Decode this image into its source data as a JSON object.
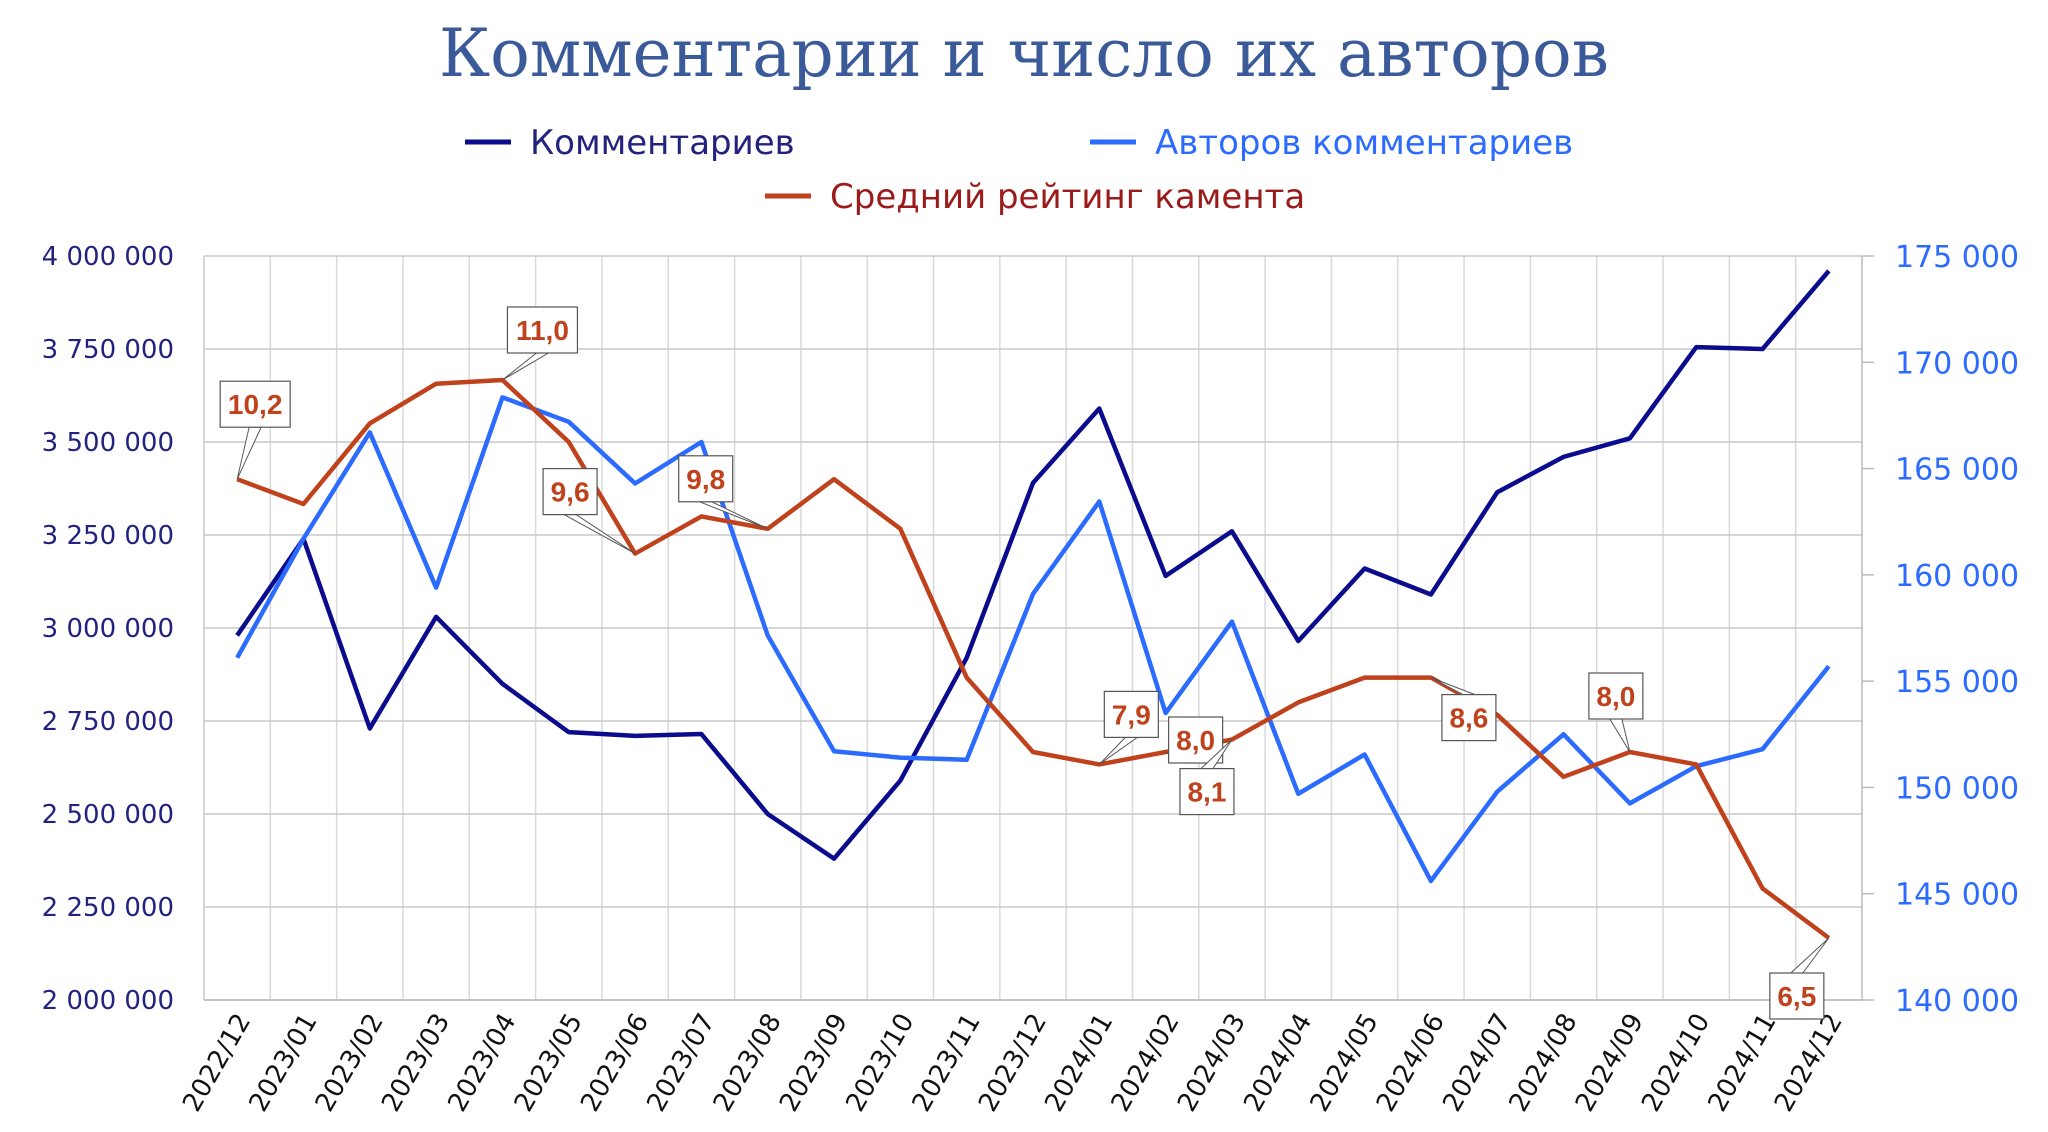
{
  "chart_data": {
    "type": "line",
    "title": "Комментарии и число их авторов",
    "legend_position": "top",
    "grid": true,
    "categories": [
      "2022/12",
      "2023/01",
      "2023/02",
      "2023/03",
      "2023/04",
      "2023/05",
      "2023/06",
      "2023/07",
      "2023/08",
      "2023/09",
      "2023/10",
      "2023/11",
      "2023/12",
      "2024/01",
      "2024/02",
      "2024/03",
      "2024/04",
      "2024/05",
      "2024/06",
      "2024/07",
      "2024/08",
      "2024/09",
      "2024/10",
      "2024/11",
      "2024/12"
    ],
    "y_left": {
      "range": [
        2000000,
        4000000
      ],
      "ticks": [
        2000000,
        2250000,
        2500000,
        2750000,
        3000000,
        3250000,
        3500000,
        3750000,
        4000000
      ],
      "tick_labels": [
        "2 000 000",
        "2 250 000",
        "2 500 000",
        "2 750 000",
        "3 000 000",
        "3 250 000",
        "3 500 000",
        "3 750 000",
        "4 000 000"
      ]
    },
    "y_right": {
      "range": [
        140000,
        175000
      ],
      "ticks": [
        140000,
        145000,
        150000,
        155000,
        160000,
        165000,
        170000,
        175000
      ],
      "tick_labels": [
        "140 000",
        "145 000",
        "150 000",
        "155 000",
        "160 000",
        "165 000",
        "170 000",
        "175 000"
      ]
    },
    "y_rating_hidden": {
      "range": [
        6,
        12
      ]
    },
    "series": [
      {
        "name": "Комментариев",
        "axis": "left",
        "color": "#0b0b8e",
        "text_color": "#23237f",
        "values": [
          2980000,
          3240000,
          2730000,
          3030000,
          2850000,
          2720000,
          2710000,
          2715000,
          2500000,
          2380000,
          2590000,
          2920000,
          3390000,
          3590000,
          3140000,
          3260000,
          2965000,
          3160000,
          3090000,
          3365000,
          3460000,
          3510000,
          3755000,
          3750000,
          3960000
        ]
      },
      {
        "name": "Авторов комментариев",
        "axis": "right",
        "color": "#2b6bff",
        "text_color": "#2b6bff",
        "values": [
          156100,
          161700,
          166700,
          159400,
          168350,
          167200,
          164300,
          166250,
          157150,
          151700,
          151400,
          151300,
          159100,
          163450,
          153500,
          157800,
          149700,
          151550,
          145600,
          149800,
          152500,
          149250,
          151000,
          151800,
          155700
        ]
      },
      {
        "name": "Средний рейтинг камента",
        "axis": "rating",
        "color": "#c0421c",
        "text_color": "#9b1b1b",
        "values": [
          10.2,
          10.0,
          10.65,
          10.97,
          11.0,
          10.5,
          9.6,
          9.9,
          9.8,
          10.2,
          9.8,
          8.6,
          8.0,
          7.9,
          8.0,
          8.1,
          8.4,
          8.6,
          8.6,
          8.3,
          7.8,
          8.0,
          7.9,
          6.9,
          6.5
        ],
        "data_labels": [
          {
            "index": 0,
            "text": "10,2"
          },
          {
            "index": 4,
            "text": "11,0"
          },
          {
            "index": 6,
            "text": "9,6"
          },
          {
            "index": 8,
            "text": "9,8"
          },
          {
            "index": 13,
            "text": "7,9"
          },
          {
            "index": 14,
            "text": "8,0"
          },
          {
            "index": 15,
            "text": "8,1"
          },
          {
            "index": 18,
            "text": "8,6"
          },
          {
            "index": 21,
            "text": "8,0"
          },
          {
            "index": 24,
            "text": "6,5"
          }
        ]
      }
    ]
  }
}
